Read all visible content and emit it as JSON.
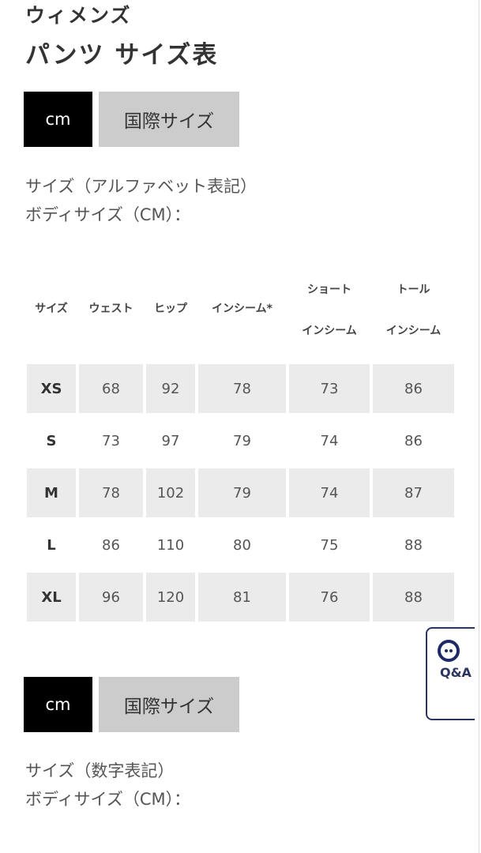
{
  "header": {
    "category": "ウィメンズ",
    "title": "パンツ サイズ表"
  },
  "section1": {
    "tabs": [
      {
        "label": "cm",
        "active": true
      },
      {
        "label": "国際サイズ",
        "active": false
      }
    ],
    "desc_line1": "サイズ（アルファベット表記）",
    "desc_line2": "ボディサイズ（CM）："
  },
  "table": {
    "headers": [
      "サイズ",
      "ウェスト",
      "ヒップ",
      "インシーム*",
      [
        "ショート",
        "インシーム"
      ],
      [
        "トール",
        "インシーム"
      ]
    ],
    "rows": [
      [
        "XS",
        "68",
        "92",
        "78",
        "73",
        "86"
      ],
      [
        "S",
        "73",
        "97",
        "79",
        "74",
        "86"
      ],
      [
        "M",
        "78",
        "102",
        "79",
        "74",
        "87"
      ],
      [
        "L",
        "86",
        "110",
        "80",
        "75",
        "88"
      ],
      [
        "XL",
        "96",
        "120",
        "81",
        "76",
        "88"
      ]
    ]
  },
  "section2": {
    "tabs": [
      {
        "label": "cm",
        "active": true
      },
      {
        "label": "国際サイズ",
        "active": false
      }
    ],
    "desc_line1": "サイズ（数字表記）",
    "desc_line2": "ボディサイズ（CM）："
  },
  "qa_button": {
    "label": "Q&A",
    "icon": "chat-bubble-icon",
    "color": "#1c2a66"
  }
}
